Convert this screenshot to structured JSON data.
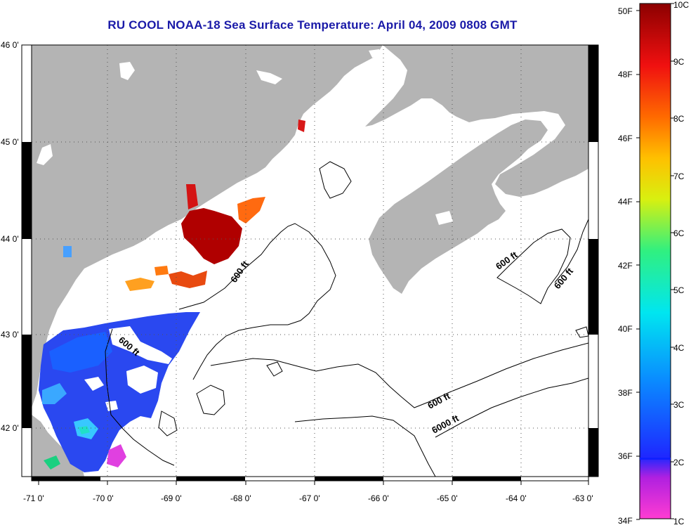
{
  "title": "RU COOL  NOAA-18  Sea Surface Temperature:  April 04, 2009 0808 GMT",
  "map": {
    "lon_ticks": [
      "-71 0'",
      "-70 0'",
      "-69 0'",
      "-68 0'",
      "-67 0'",
      "-66 0'",
      "-65 0'",
      "-64 0'",
      "-63 0'"
    ],
    "lat_ticks": [
      "46 0'",
      "45 0'",
      "44 0'",
      "43 0'",
      "42 0'"
    ],
    "contour_labels": [
      "600 ft",
      "600 ft",
      "600 ft",
      "600 ft",
      "600 ft",
      "6000 ft"
    ],
    "colors": {
      "land": "#b4b4b4",
      "water_nodata": "#ffffff",
      "contour": "#000000"
    }
  },
  "colorbar": {
    "fahrenheit_labels": [
      "50F",
      "48F",
      "46F",
      "44F",
      "42F",
      "40F",
      "38F",
      "36F",
      "34F"
    ],
    "celsius_labels": [
      "10C",
      "9C",
      "8C",
      "7C",
      "6C",
      "5C",
      "4C",
      "3C",
      "2C",
      "1C"
    ],
    "colors": [
      "#ff3cd2",
      "#b020e0",
      "#1e28ff",
      "#0a8cff",
      "#00e6f0",
      "#30f080",
      "#d8f010",
      "#ffc000",
      "#ff6a00",
      "#f01010",
      "#8c0000"
    ]
  }
}
